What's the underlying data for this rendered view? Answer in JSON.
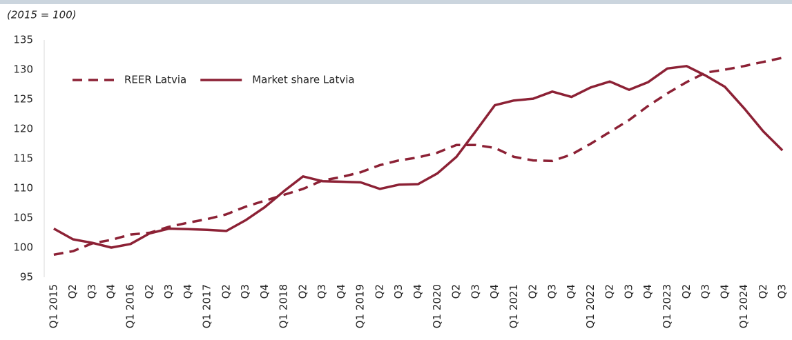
{
  "chart_data": {
    "type": "line",
    "subtitle": "(2015 = 100)",
    "categories": [
      "Q1 2015",
      "Q2",
      "Q3",
      "Q4",
      "Q1 2016",
      "Q2",
      "Q3",
      "Q4",
      "Q1 2017",
      "Q2",
      "Q3",
      "Q4",
      "Q1 2018",
      "Q2",
      "Q3",
      "Q4",
      "Q1 2019",
      "Q2",
      "Q3",
      "Q4",
      "Q1 2020",
      "Q2",
      "Q3",
      "Q4",
      "Q1 2021",
      "Q2",
      "Q3",
      "Q4",
      "Q1 2022",
      "Q2",
      "Q3",
      "Q4",
      "Q1 2023",
      "Q2",
      "Q3",
      "Q4",
      "Q1 2024",
      "Q2",
      "Q3"
    ],
    "series": [
      {
        "name": "REER Latvia",
        "color": "#8c2135",
        "dash": true,
        "values": [
          98.8,
          99.4,
          100.7,
          101.3,
          102.2,
          102.5,
          103.5,
          104.2,
          104.8,
          105.6,
          106.9,
          107.9,
          108.9,
          109.9,
          111.3,
          111.9,
          112.7,
          113.9,
          114.7,
          115.2,
          116.0,
          117.3,
          117.3,
          116.8,
          115.3,
          114.7,
          114.6,
          115.7,
          117.5,
          119.5,
          121.5,
          123.9,
          126.0,
          127.9,
          129.5,
          130.0,
          130.6,
          131.3,
          132.0
        ]
      },
      {
        "name": "Market share Latvia",
        "color": "#8c2135",
        "dash": false,
        "values": [
          103.2,
          101.4,
          100.8,
          100.0,
          100.6,
          102.4,
          103.2,
          103.1,
          103.0,
          102.8,
          104.6,
          106.8,
          109.5,
          112.0,
          111.2,
          111.1,
          111.0,
          109.9,
          110.6,
          110.7,
          112.5,
          115.3,
          119.6,
          124.0,
          124.8,
          125.1,
          126.3,
          125.4,
          127.0,
          128.0,
          126.6,
          127.9,
          130.2,
          130.6,
          129.0,
          127.1,
          123.5,
          119.6,
          116.4
        ]
      }
    ],
    "ylim": [
      95,
      135
    ],
    "yticks": [
      95,
      100,
      105,
      110,
      115,
      120,
      125,
      130,
      135
    ],
    "grid": false,
    "legend": "upper left"
  }
}
